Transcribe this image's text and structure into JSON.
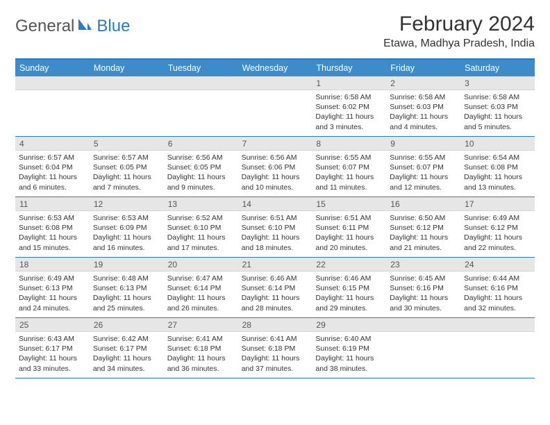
{
  "header": {
    "logo_general": "General",
    "logo_blue": "Blue",
    "month_title": "February 2024",
    "location": "Etawa, Madhya Pradesh, India"
  },
  "colors": {
    "header_bar": "#3d8bc9",
    "border": "#2a7bbf",
    "day_header_bg": "#e6e6e6",
    "text": "#333333",
    "logo_accent": "#2a7bbf"
  },
  "weekdays": [
    "Sunday",
    "Monday",
    "Tuesday",
    "Wednesday",
    "Thursday",
    "Friday",
    "Saturday"
  ],
  "weeks": [
    [
      {
        "empty": true
      },
      {
        "empty": true
      },
      {
        "empty": true
      },
      {
        "empty": true
      },
      {
        "num": "1",
        "sunrise": "Sunrise: 6:58 AM",
        "sunset": "Sunset: 6:02 PM",
        "daylight1": "Daylight: 11 hours",
        "daylight2": "and 3 minutes."
      },
      {
        "num": "2",
        "sunrise": "Sunrise: 6:58 AM",
        "sunset": "Sunset: 6:03 PM",
        "daylight1": "Daylight: 11 hours",
        "daylight2": "and 4 minutes."
      },
      {
        "num": "3",
        "sunrise": "Sunrise: 6:58 AM",
        "sunset": "Sunset: 6:03 PM",
        "daylight1": "Daylight: 11 hours",
        "daylight2": "and 5 minutes."
      }
    ],
    [
      {
        "num": "4",
        "sunrise": "Sunrise: 6:57 AM",
        "sunset": "Sunset: 6:04 PM",
        "daylight1": "Daylight: 11 hours",
        "daylight2": "and 6 minutes."
      },
      {
        "num": "5",
        "sunrise": "Sunrise: 6:57 AM",
        "sunset": "Sunset: 6:05 PM",
        "daylight1": "Daylight: 11 hours",
        "daylight2": "and 7 minutes."
      },
      {
        "num": "6",
        "sunrise": "Sunrise: 6:56 AM",
        "sunset": "Sunset: 6:05 PM",
        "daylight1": "Daylight: 11 hours",
        "daylight2": "and 9 minutes."
      },
      {
        "num": "7",
        "sunrise": "Sunrise: 6:56 AM",
        "sunset": "Sunset: 6:06 PM",
        "daylight1": "Daylight: 11 hours",
        "daylight2": "and 10 minutes."
      },
      {
        "num": "8",
        "sunrise": "Sunrise: 6:55 AM",
        "sunset": "Sunset: 6:07 PM",
        "daylight1": "Daylight: 11 hours",
        "daylight2": "and 11 minutes."
      },
      {
        "num": "9",
        "sunrise": "Sunrise: 6:55 AM",
        "sunset": "Sunset: 6:07 PM",
        "daylight1": "Daylight: 11 hours",
        "daylight2": "and 12 minutes."
      },
      {
        "num": "10",
        "sunrise": "Sunrise: 6:54 AM",
        "sunset": "Sunset: 6:08 PM",
        "daylight1": "Daylight: 11 hours",
        "daylight2": "and 13 minutes."
      }
    ],
    [
      {
        "num": "11",
        "sunrise": "Sunrise: 6:53 AM",
        "sunset": "Sunset: 6:08 PM",
        "daylight1": "Daylight: 11 hours",
        "daylight2": "and 15 minutes."
      },
      {
        "num": "12",
        "sunrise": "Sunrise: 6:53 AM",
        "sunset": "Sunset: 6:09 PM",
        "daylight1": "Daylight: 11 hours",
        "daylight2": "and 16 minutes."
      },
      {
        "num": "13",
        "sunrise": "Sunrise: 6:52 AM",
        "sunset": "Sunset: 6:10 PM",
        "daylight1": "Daylight: 11 hours",
        "daylight2": "and 17 minutes."
      },
      {
        "num": "14",
        "sunrise": "Sunrise: 6:51 AM",
        "sunset": "Sunset: 6:10 PM",
        "daylight1": "Daylight: 11 hours",
        "daylight2": "and 18 minutes."
      },
      {
        "num": "15",
        "sunrise": "Sunrise: 6:51 AM",
        "sunset": "Sunset: 6:11 PM",
        "daylight1": "Daylight: 11 hours",
        "daylight2": "and 20 minutes."
      },
      {
        "num": "16",
        "sunrise": "Sunrise: 6:50 AM",
        "sunset": "Sunset: 6:12 PM",
        "daylight1": "Daylight: 11 hours",
        "daylight2": "and 21 minutes."
      },
      {
        "num": "17",
        "sunrise": "Sunrise: 6:49 AM",
        "sunset": "Sunset: 6:12 PM",
        "daylight1": "Daylight: 11 hours",
        "daylight2": "and 22 minutes."
      }
    ],
    [
      {
        "num": "18",
        "sunrise": "Sunrise: 6:49 AM",
        "sunset": "Sunset: 6:13 PM",
        "daylight1": "Daylight: 11 hours",
        "daylight2": "and 24 minutes."
      },
      {
        "num": "19",
        "sunrise": "Sunrise: 6:48 AM",
        "sunset": "Sunset: 6:13 PM",
        "daylight1": "Daylight: 11 hours",
        "daylight2": "and 25 minutes."
      },
      {
        "num": "20",
        "sunrise": "Sunrise: 6:47 AM",
        "sunset": "Sunset: 6:14 PM",
        "daylight1": "Daylight: 11 hours",
        "daylight2": "and 26 minutes."
      },
      {
        "num": "21",
        "sunrise": "Sunrise: 6:46 AM",
        "sunset": "Sunset: 6:14 PM",
        "daylight1": "Daylight: 11 hours",
        "daylight2": "and 28 minutes."
      },
      {
        "num": "22",
        "sunrise": "Sunrise: 6:46 AM",
        "sunset": "Sunset: 6:15 PM",
        "daylight1": "Daylight: 11 hours",
        "daylight2": "and 29 minutes."
      },
      {
        "num": "23",
        "sunrise": "Sunrise: 6:45 AM",
        "sunset": "Sunset: 6:16 PM",
        "daylight1": "Daylight: 11 hours",
        "daylight2": "and 30 minutes."
      },
      {
        "num": "24",
        "sunrise": "Sunrise: 6:44 AM",
        "sunset": "Sunset: 6:16 PM",
        "daylight1": "Daylight: 11 hours",
        "daylight2": "and 32 minutes."
      }
    ],
    [
      {
        "num": "25",
        "sunrise": "Sunrise: 6:43 AM",
        "sunset": "Sunset: 6:17 PM",
        "daylight1": "Daylight: 11 hours",
        "daylight2": "and 33 minutes."
      },
      {
        "num": "26",
        "sunrise": "Sunrise: 6:42 AM",
        "sunset": "Sunset: 6:17 PM",
        "daylight1": "Daylight: 11 hours",
        "daylight2": "and 34 minutes."
      },
      {
        "num": "27",
        "sunrise": "Sunrise: 6:41 AM",
        "sunset": "Sunset: 6:18 PM",
        "daylight1": "Daylight: 11 hours",
        "daylight2": "and 36 minutes."
      },
      {
        "num": "28",
        "sunrise": "Sunrise: 6:41 AM",
        "sunset": "Sunset: 6:18 PM",
        "daylight1": "Daylight: 11 hours",
        "daylight2": "and 37 minutes."
      },
      {
        "num": "29",
        "sunrise": "Sunrise: 6:40 AM",
        "sunset": "Sunset: 6:19 PM",
        "daylight1": "Daylight: 11 hours",
        "daylight2": "and 38 minutes."
      },
      {
        "empty": true
      },
      {
        "empty": true
      }
    ]
  ]
}
